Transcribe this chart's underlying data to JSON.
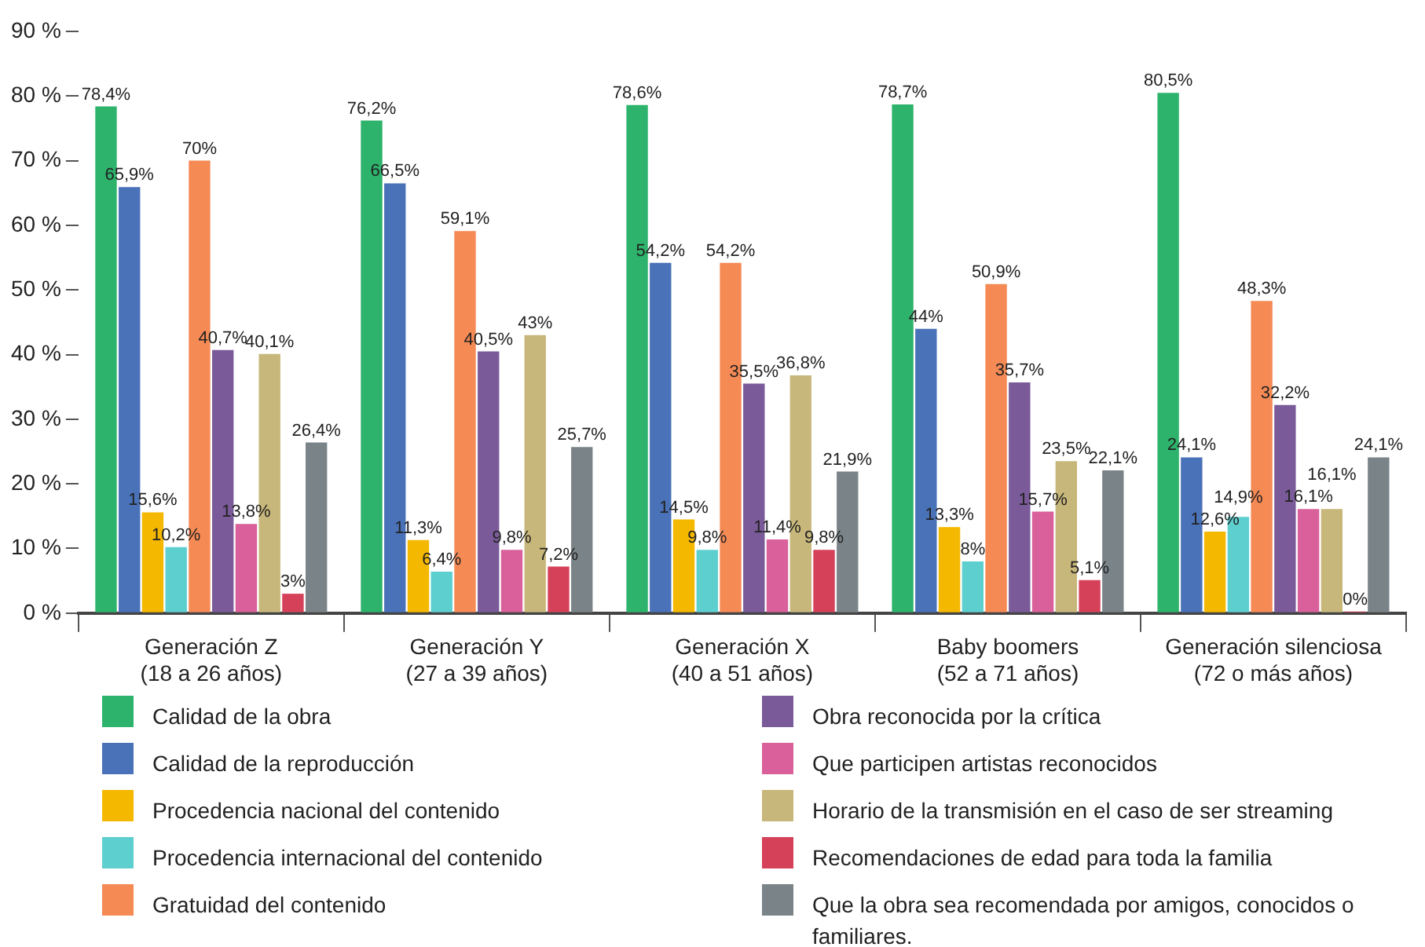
{
  "chart_data": {
    "type": "bar",
    "categories": [
      "Generación Z\n(18 a 26 años)",
      "Generación Y\n(27 a 39 años)",
      "Generación X\n(40 a 51 años)",
      "Baby boomers\n(52 a 71 años)",
      "Generación silenciosa\n(72 o más años)"
    ],
    "ylim": [
      0,
      90
    ],
    "yticks": [
      {
        "value": 0,
        "label": "0 %"
      },
      {
        "value": 10,
        "label": "10 %"
      },
      {
        "value": 20,
        "label": "20 %"
      },
      {
        "value": 30,
        "label": "30 %"
      },
      {
        "value": 40,
        "label": "40 %"
      },
      {
        "value": 50,
        "label": "50 %"
      },
      {
        "value": 60,
        "label": "60 %"
      },
      {
        "value": 70,
        "label": "70 %"
      },
      {
        "value": 80,
        "label": "80 %"
      },
      {
        "value": 90,
        "label": "90 %"
      }
    ],
    "grid": false,
    "legend": "bottom",
    "series": [
      {
        "name": "Calidad de la obra",
        "color": "#2db36b",
        "values": [
          78.4,
          76.2,
          78.6,
          78.7,
          80.5
        ],
        "value_labels": [
          "78,4%",
          "76,2%",
          "78,6%",
          "78,7%",
          "80,5%"
        ]
      },
      {
        "name": "Calidad de la reproducción",
        "color": "#4a72b8",
        "values": [
          65.9,
          66.5,
          54.2,
          44,
          24.1
        ],
        "value_labels": [
          "65,9%",
          "66,5%",
          "54,2%",
          "44%",
          "24,1%"
        ]
      },
      {
        "name": "Procedencia nacional del contenido",
        "color": "#f5b800",
        "values": [
          15.6,
          11.3,
          14.5,
          13.3,
          12.6
        ],
        "value_labels": [
          "15,6%",
          "11,3%",
          "14,5%",
          "13,3%",
          "12,6%"
        ]
      },
      {
        "name": "Procedencia internacional del contenido",
        "color": "#5ecfcf",
        "values": [
          10.2,
          6.4,
          9.8,
          8,
          14.9
        ],
        "value_labels": [
          "10,2%",
          "6,4%",
          "9,8%",
          "8%",
          "14,9%"
        ]
      },
      {
        "name": "Gratuidad del contenido",
        "color": "#f58a55",
        "values": [
          70,
          59.1,
          54.2,
          50.9,
          48.3
        ],
        "value_labels": [
          "70%",
          "59,1%",
          "54,2%",
          "50,9%",
          "48,3%"
        ]
      },
      {
        "name": "Obra reconocida por la crítica",
        "color": "#7a5a99",
        "values": [
          40.7,
          40.5,
          35.5,
          35.7,
          32.2
        ],
        "value_labels": [
          "40,7%",
          "40,5%",
          "35,5%",
          "35,7%",
          "32,2%"
        ]
      },
      {
        "name": "Que participen artistas reconocidos",
        "color": "#d9609a",
        "values": [
          13.8,
          9.8,
          11.4,
          15.7,
          16.1
        ],
        "value_labels": [
          "13,8%",
          "9,8%",
          "11,4%",
          "15,7%",
          "16,1%"
        ]
      },
      {
        "name": "Horario de la transmisión en el caso de ser streaming",
        "color": "#c8b77a",
        "values": [
          40.1,
          43,
          36.8,
          23.5,
          16.1
        ],
        "value_labels": [
          "40,1%",
          "43%",
          "36,8%",
          "23,5%",
          "16,1%"
        ]
      },
      {
        "name": "Recomendaciones de edad para toda la familia",
        "color": "#d6415a",
        "values": [
          3,
          7.2,
          9.8,
          5.1,
          0
        ],
        "value_labels": [
          "3%",
          "7,2%",
          "9,8%",
          "5,1%",
          "0%"
        ]
      },
      {
        "name": "Que la obra sea recomendada por amigos, conocidos o familiares.",
        "color": "#7a8488",
        "values": [
          26.4,
          25.7,
          21.9,
          22.1,
          24.1
        ],
        "value_labels": [
          "26,4%",
          "25,7%",
          "21,9%",
          "22,1%",
          "24,1%"
        ]
      }
    ]
  }
}
